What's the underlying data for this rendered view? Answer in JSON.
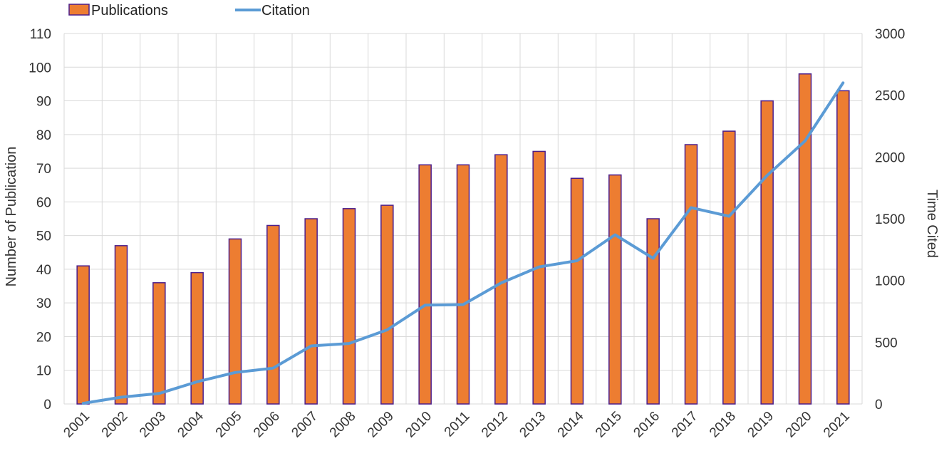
{
  "chart_data": {
    "type": "bar",
    "categories": [
      "2001",
      "2002",
      "2003",
      "2004",
      "2005",
      "2006",
      "2007",
      "2008",
      "2009",
      "2010",
      "2011",
      "2012",
      "2013",
      "2014",
      "2015",
      "2016",
      "2017",
      "2018",
      "2019",
      "2020",
      "2021"
    ],
    "series": [
      {
        "name": "Publications",
        "type": "bar",
        "axis": "left",
        "color": "#ED7D31",
        "edge_color": "#4B1E8C",
        "values": [
          41,
          47,
          36,
          39,
          49,
          53,
          55,
          58,
          59,
          71,
          71,
          74,
          75,
          67,
          68,
          55,
          77,
          81,
          90,
          98,
          93
        ]
      },
      {
        "name": "Citation",
        "type": "line",
        "axis": "right",
        "color": "#5B9BD5",
        "values": [
          5,
          55,
          85,
          180,
          255,
          290,
          470,
          490,
          600,
          800,
          805,
          980,
          1110,
          1160,
          1370,
          1180,
          1590,
          1520,
          1850,
          2130,
          2600
        ]
      }
    ],
    "ylabel": "Number of Publication",
    "y2label": "Time Cited",
    "ylim": [
      0,
      110
    ],
    "y2lim": [
      0,
      3000
    ],
    "yticks": [
      0,
      10,
      20,
      30,
      40,
      50,
      60,
      70,
      80,
      90,
      100,
      110
    ],
    "y2ticks": [
      0,
      500,
      1000,
      1500,
      2000,
      2500,
      3000
    ],
    "grid": true,
    "legend": "top-left"
  }
}
